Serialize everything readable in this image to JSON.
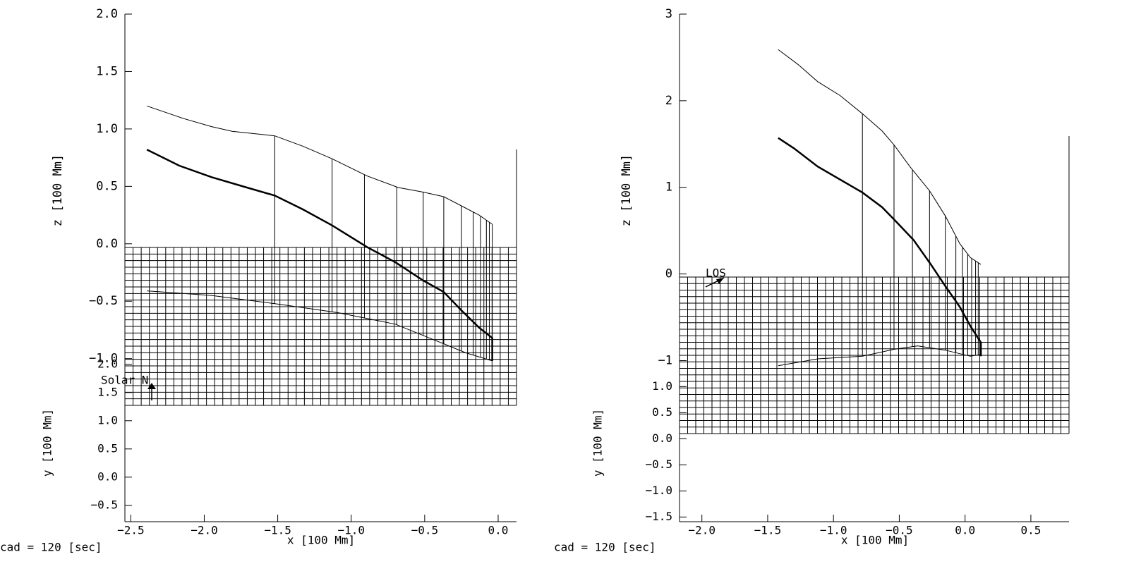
{
  "chart_data": [
    {
      "type": "line",
      "color": "#000000",
      "xlim": [
        -2.54,
        0.125
      ],
      "xticks": [
        {
          "value": -2.5,
          "label": "−2.5"
        },
        {
          "value": -2.0,
          "label": "−2.0"
        },
        {
          "value": -1.5,
          "label": "−1.5"
        },
        {
          "value": -1.0,
          "label": "−1.0"
        },
        {
          "value": -0.5,
          "label": "−0.5"
        },
        {
          "value": 0.0,
          "label": "0.0"
        }
      ],
      "zlim": [
        -2.42,
        2.0
      ],
      "zticks": [
        {
          "value": 2.0,
          "label": "2.0"
        },
        {
          "value": 1.5,
          "label": "1.5"
        },
        {
          "value": 1.0,
          "label": "1.0"
        },
        {
          "value": 0.5,
          "label": "0.5"
        },
        {
          "value": 0.0,
          "label": "0.0"
        },
        {
          "value": -0.5,
          "label": "−0.5"
        },
        {
          "value": -1.0,
          "label": "−1.0"
        }
      ],
      "ylim": [
        -0.79,
        8.21
      ],
      "yticks": [
        {
          "value": 2.0,
          "label": "2.0"
        },
        {
          "value": 1.5,
          "label": "1.5"
        },
        {
          "value": 1.0,
          "label": "1.0"
        },
        {
          "value": 0.5,
          "label": "0.5"
        },
        {
          "value": 0.0,
          "label": "0.0"
        },
        {
          "value": -0.5,
          "label": "−0.5"
        }
      ],
      "x_label": "x [100 Mm]",
      "z_label": "z [100 Mm]",
      "y_label": "y [100 Mm]",
      "caption": "cad =  120 [sec]",
      "annotation": "Solar N",
      "series": [
        {
          "width": 1,
          "x": [
            -2.39,
            -2.14,
            -1.95,
            -1.81,
            -1.52,
            -1.33,
            -1.13,
            -0.89,
            -0.68,
            -0.51,
            -0.37,
            -0.25,
            -0.13,
            -0.04
          ],
          "values": [
            1.2,
            1.09,
            1.02,
            0.98,
            0.94,
            0.85,
            0.74,
            0.59,
            0.49,
            0.45,
            0.41,
            0.33,
            0.25,
            0.17
          ]
        },
        {
          "width": 2.5,
          "x": [
            -2.39,
            -2.17,
            -1.95,
            -1.71,
            -1.52,
            -1.33,
            -1.13,
            -0.89,
            -0.7,
            -0.51,
            -0.37,
            -0.25,
            -0.13,
            -0.04,
            -0.04
          ],
          "values": [
            0.82,
            0.68,
            0.58,
            0.49,
            0.42,
            0.3,
            0.16,
            -0.03,
            -0.16,
            -0.32,
            -0.42,
            -0.58,
            -0.73,
            -0.82,
            -1.02
          ]
        },
        {
          "width": 1,
          "x": [
            -2.39,
            -1.95,
            -1.47,
            -1.09,
            -0.7,
            -0.41,
            -0.22,
            -0.04
          ],
          "values": [
            -0.41,
            -0.45,
            -0.53,
            -0.6,
            -0.7,
            -0.85,
            -0.95,
            -1.02
          ]
        }
      ],
      "drops": [
        -1.52,
        -1.13,
        -0.91,
        -0.69,
        -0.51,
        -0.37,
        -0.25,
        -0.17,
        -0.12,
        -0.08,
        -0.06,
        -0.04
      ]
    },
    {
      "type": "line",
      "color": "#000000",
      "xlim": [
        -2.17,
        0.79
      ],
      "xticks": [
        {
          "value": -2.0,
          "label": "−2.0"
        },
        {
          "value": -1.5,
          "label": "−1.5"
        },
        {
          "value": -1.0,
          "label": "−1.0"
        },
        {
          "value": -0.5,
          "label": "−0.5"
        },
        {
          "value": 0.0,
          "label": "0.0"
        },
        {
          "value": 0.5,
          "label": "0.5"
        }
      ],
      "zlim": [
        -2.86,
        3.0
      ],
      "zticks": [
        3,
        2,
        1,
        0,
        {
          "value": -1,
          "label": "−1"
        }
      ],
      "ylim": [
        -1.59,
        8.14
      ],
      "yticks": [
        {
          "value": 1.0,
          "label": "1.0"
        },
        {
          "value": 0.5,
          "label": "0.5"
        },
        {
          "value": 0.0,
          "label": "0.0"
        },
        {
          "value": -0.5,
          "label": "−0.5"
        },
        {
          "value": -1.0,
          "label": "−1.0"
        },
        {
          "value": -1.5,
          "label": "−1.5"
        }
      ],
      "x_label": "x [100 Mm]",
      "z_label": "z [100 Mm]",
      "y_label": "y [100 Mm]",
      "caption": "cad =  120 [sec]",
      "annotation": "LOS",
      "series": [
        {
          "width": 1,
          "x": [
            -1.42,
            -1.27,
            -1.12,
            -0.95,
            -0.78,
            -0.63,
            -0.54,
            -0.42,
            -0.27,
            -0.15,
            -0.04,
            0.04,
            0.12
          ],
          "values": [
            2.59,
            2.42,
            2.22,
            2.06,
            1.85,
            1.65,
            1.49,
            1.24,
            0.96,
            0.67,
            0.35,
            0.19,
            0.11
          ]
        },
        {
          "width": 2.5,
          "x": [
            -1.42,
            -1.3,
            -1.12,
            -0.78,
            -0.63,
            -0.54,
            -0.39,
            -0.26,
            -0.15,
            -0.04,
            0.04,
            0.12,
            0.12
          ],
          "values": [
            1.57,
            1.45,
            1.24,
            0.94,
            0.77,
            0.63,
            0.39,
            0.11,
            -0.14,
            -0.38,
            -0.6,
            -0.79,
            -0.95
          ]
        },
        {
          "width": 1,
          "x": [
            -1.42,
            -1.12,
            -0.78,
            -0.54,
            -0.36,
            -0.15,
            0.04,
            0.12
          ],
          "values": [
            -1.06,
            -0.98,
            -0.95,
            -0.87,
            -0.83,
            -0.88,
            -0.95,
            -0.93
          ]
        }
      ],
      "drops": [
        -0.78,
        -0.54,
        -0.4,
        -0.27,
        -0.15,
        -0.07,
        -0.02,
        0.02,
        0.05,
        0.08,
        0.1
      ]
    }
  ]
}
